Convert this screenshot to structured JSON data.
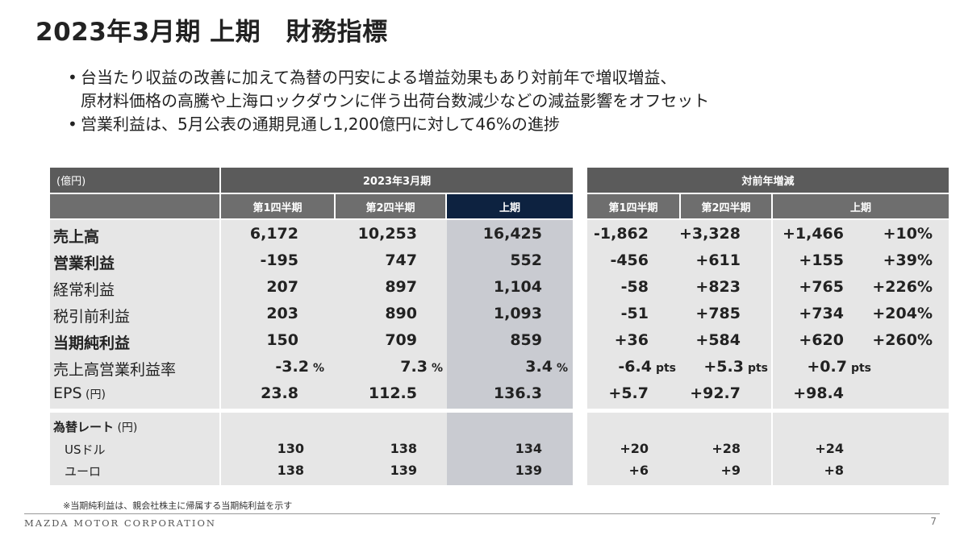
{
  "title": "2023年3月期 上期　財務指標",
  "bullets": [
    {
      "line1": "台当たり収益の改善に加えて為替の円安による増益効果もあり対前年で増収増益、",
      "line2": "原材料価格の高騰や上海ロックダウンに伴う出荷台数減少などの減益影響をオフセット"
    },
    {
      "line1": "営業利益は、5月公表の通期見通し1,200億円に対して46%の進捗",
      "line2": ""
    }
  ],
  "bullet_mark": "•",
  "table": {
    "unit_label": "(億円)",
    "group1": "2023年3月期",
    "group2": "対前年増減",
    "sub1": [
      "第1四半期",
      "第2四半期",
      "上期"
    ],
    "sub2": [
      "第1四半期",
      "第2四半期",
      "上期"
    ],
    "rows": [
      {
        "label": "売上高",
        "unit": "",
        "bold": true,
        "v": [
          "6,172",
          "10,253",
          "16,425"
        ],
        "d": [
          "-1,862",
          "+3,328",
          "+1,466",
          "+10%"
        ],
        "suf": "",
        "dsuf": ""
      },
      {
        "label": "営業利益",
        "unit": "",
        "bold": true,
        "v": [
          "-195",
          "747",
          "552"
        ],
        "d": [
          "-456",
          "+611",
          "+155",
          "+39%"
        ],
        "suf": "",
        "dsuf": ""
      },
      {
        "label": "経常利益",
        "unit": "",
        "bold": false,
        "v": [
          "207",
          "897",
          "1,104"
        ],
        "d": [
          "-58",
          "+823",
          "+765",
          "+226%"
        ],
        "suf": "",
        "dsuf": ""
      },
      {
        "label": "税引前利益",
        "unit": "",
        "bold": false,
        "v": [
          "203",
          "890",
          "1,093"
        ],
        "d": [
          "-51",
          "+785",
          "+734",
          "+204%"
        ],
        "suf": "",
        "dsuf": ""
      },
      {
        "label": "当期純利益",
        "unit": "",
        "bold": true,
        "v": [
          "150",
          "709",
          "859"
        ],
        "d": [
          "+36",
          "+584",
          "+620",
          "+260%"
        ],
        "suf": "",
        "dsuf": ""
      },
      {
        "label": "売上高営業利益率",
        "unit": "",
        "bold": false,
        "v": [
          "-3.2",
          "7.3",
          "3.4"
        ],
        "d": [
          "-6.4",
          "+5.3",
          "+0.7",
          ""
        ],
        "suf": "%",
        "dsuf": "pts"
      },
      {
        "label": "EPS",
        "unit": " (円)",
        "bold": false,
        "v": [
          "23.8",
          "112.5",
          "136.3"
        ],
        "d": [
          "+5.7",
          "+92.7",
          "+98.4",
          ""
        ],
        "suf": "",
        "dsuf": ""
      }
    ],
    "fx": {
      "label": "為替レート",
      "unit": " (円)",
      "rows": [
        {
          "label": "USドル",
          "v": [
            "130",
            "138",
            "134"
          ],
          "d": [
            "+20",
            "+28",
            "+24"
          ]
        },
        {
          "label": "ユーロ",
          "v": [
            "138",
            "139",
            "139"
          ],
          "d": [
            "+6",
            "+9",
            "+8"
          ]
        }
      ]
    }
  },
  "note": "※当期純利益は、親会社株主に帰属する当期純利益を示す",
  "company": "MAZDA MOTOR CORPORATION",
  "page_number": "7",
  "colors": {
    "header": "#5b5b5b",
    "highlight_header": "#0d2240",
    "band": "#e6e6e6",
    "highlight_band": "#c9cbd1"
  }
}
